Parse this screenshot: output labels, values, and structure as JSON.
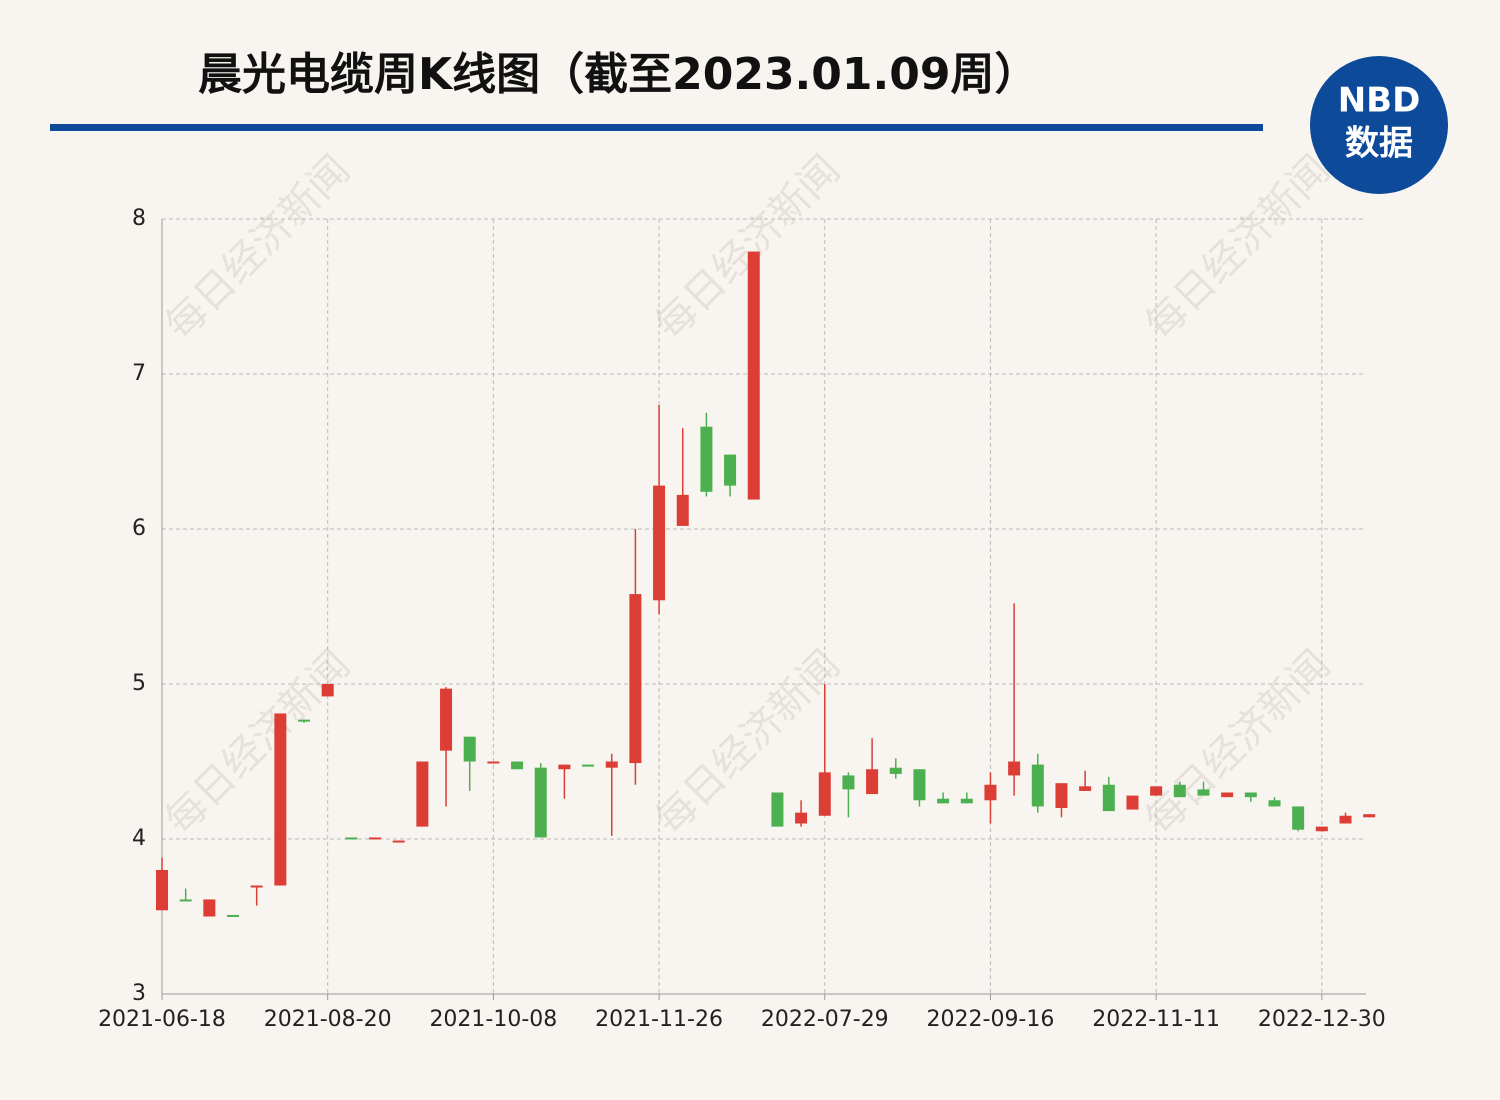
{
  "chart_data": {
    "type": "candlestick",
    "title": "晨光电缆周K线图（截至2023.01.09周）",
    "watermark": "每日经济新闻",
    "logo": {
      "top": "NBD",
      "bottom": "数据"
    },
    "categories": [
      "2021-06-18",
      null,
      null,
      null,
      null,
      null,
      null,
      "2021-08-20",
      null,
      null,
      null,
      null,
      null,
      null,
      "2021-10-08",
      null,
      null,
      null,
      null,
      null,
      null,
      "2021-11-26",
      null,
      null,
      null,
      null,
      null,
      null,
      "2022-07-29",
      null,
      null,
      null,
      null,
      null,
      null,
      "2022-09-16",
      null,
      null,
      null,
      null,
      null,
      null,
      "2022-11-11",
      null,
      null,
      null,
      null,
      null,
      null,
      "2022-12-30",
      null,
      null
    ],
    "open": [
      3.54,
      3.61,
      3.5,
      3.51,
      3.69,
      3.7,
      4.77,
      4.92,
      4.01,
      4.0,
      3.98,
      4.08,
      4.57,
      4.66,
      4.49,
      4.5,
      4.46,
      4.45,
      4.48,
      4.46,
      4.49,
      5.54,
      6.02,
      6.66,
      6.48,
      6.19,
      4.3,
      4.1,
      4.15,
      4.41,
      4.29,
      4.46,
      4.45,
      4.26,
      4.26,
      4.25,
      4.41,
      4.48,
      4.2,
      4.31,
      4.35,
      4.19,
      4.28,
      4.35,
      4.32,
      4.27,
      4.3,
      4.25,
      4.21,
      4.05,
      4.1,
      4.14
    ],
    "high": [
      3.88,
      3.68,
      3.61,
      3.51,
      3.7,
      4.81,
      4.77,
      5.0,
      4.01,
      4.01,
      3.99,
      4.5,
      4.98,
      4.66,
      4.5,
      4.5,
      4.49,
      4.48,
      4.48,
      4.55,
      6.0,
      6.8,
      6.65,
      6.75,
      6.48,
      7.79,
      4.3,
      4.25,
      5.0,
      4.43,
      4.65,
      4.52,
      4.45,
      4.3,
      4.3,
      4.43,
      5.52,
      4.55,
      4.36,
      4.44,
      4.4,
      4.28,
      4.34,
      4.37,
      4.37,
      4.3,
      4.3,
      4.27,
      4.21,
      4.08,
      4.17,
      4.16
    ],
    "low": [
      3.54,
      3.6,
      3.5,
      3.5,
      3.57,
      3.7,
      4.75,
      4.92,
      4.0,
      4.0,
      3.98,
      4.08,
      4.21,
      4.31,
      4.49,
      4.45,
      4.01,
      4.26,
      4.47,
      4.02,
      4.35,
      5.45,
      6.02,
      6.21,
      6.21,
      6.19,
      4.08,
      4.08,
      4.15,
      4.14,
      4.29,
      4.39,
      4.21,
      4.23,
      4.23,
      4.1,
      4.28,
      4.17,
      4.14,
      4.31,
      4.18,
      4.19,
      4.28,
      4.27,
      4.28,
      4.27,
      4.24,
      4.21,
      4.05,
      4.05,
      4.1,
      4.14
    ],
    "close": [
      3.8,
      3.6,
      3.61,
      3.5,
      3.7,
      4.81,
      4.76,
      5.0,
      4.0,
      4.01,
      3.99,
      4.5,
      4.97,
      4.5,
      4.5,
      4.45,
      4.01,
      4.48,
      4.47,
      4.5,
      5.58,
      6.28,
      6.22,
      6.24,
      6.28,
      7.79,
      4.08,
      4.17,
      4.43,
      4.32,
      4.45,
      4.42,
      4.25,
      4.23,
      4.23,
      4.35,
      4.5,
      4.21,
      4.36,
      4.34,
      4.18,
      4.28,
      4.34,
      4.27,
      4.28,
      4.3,
      4.27,
      4.21,
      4.06,
      4.08,
      4.15,
      4.16
    ],
    "up_color": "#dc3d35",
    "down_color": "#4caf50",
    "ylim": [
      3,
      8
    ],
    "yticks": [
      3,
      4,
      5,
      6,
      7,
      8
    ],
    "grid": true
  }
}
